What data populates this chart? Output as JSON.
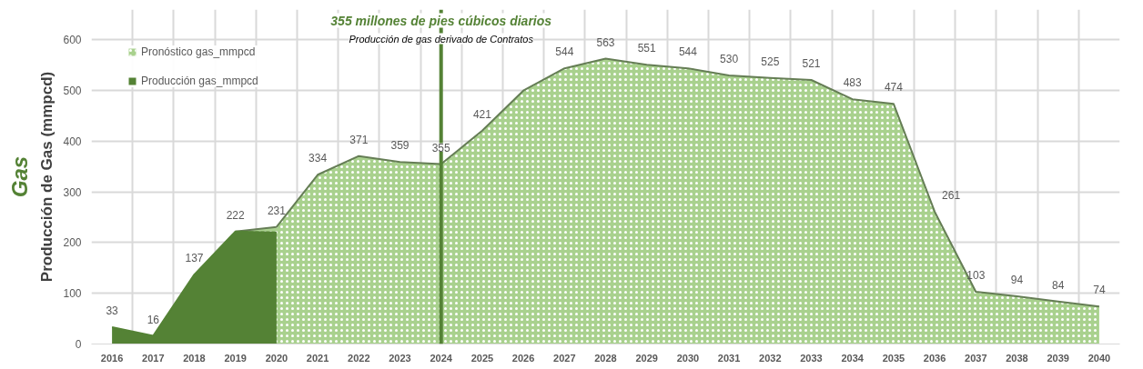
{
  "chart_data": {
    "type": "area",
    "title": "Gas",
    "ylabel": "Producción de Gas (mmpcd)",
    "categories": [
      "2016",
      "2017",
      "2018",
      "2019",
      "2020",
      "2021",
      "2022",
      "2023",
      "2024",
      "2025",
      "2026",
      "2027",
      "2028",
      "2029",
      "2030",
      "2031",
      "2032",
      "2033",
      "2034",
      "2035",
      "2036",
      "2037",
      "2038",
      "2039",
      "2040"
    ],
    "series": [
      {
        "name": "Pronóstico gas_mmpcd",
        "color": "#a9d18e",
        "values": [
          null,
          null,
          null,
          222,
          231,
          334,
          371,
          359,
          355,
          421,
          500,
          544,
          563,
          551,
          544,
          530,
          525,
          521,
          483,
          474,
          261,
          103,
          94,
          84,
          74
        ],
        "value_labels": [
          null,
          null,
          null,
          null,
          "231",
          "334",
          "371",
          "359",
          "355",
          "421",
          null,
          "544",
          "563",
          "551",
          "544",
          "530",
          "525",
          "521",
          "483",
          "474",
          "261",
          "103",
          "94",
          "84",
          "74"
        ]
      },
      {
        "name": "Producción gas_mmpcd",
        "color": "#548235",
        "values": [
          33,
          16,
          137,
          222,
          220,
          null,
          null,
          null,
          null,
          null,
          null,
          null,
          null,
          null,
          null,
          null,
          null,
          null,
          null,
          null,
          null,
          null,
          null,
          null,
          null
        ],
        "value_labels": [
          "33",
          "16",
          "137",
          "222",
          null,
          null,
          null,
          null,
          null,
          null,
          null,
          null,
          null,
          null,
          null,
          null,
          null,
          null,
          null,
          null,
          null,
          null,
          null,
          null,
          null
        ]
      }
    ],
    "ylim": [
      0,
      660
    ],
    "yticks": [
      0,
      100,
      200,
      300,
      400,
      500,
      600
    ],
    "ref_lines": [
      {
        "axis": "x",
        "value": "2024",
        "label": "355 millones de pies cúbicos diarios",
        "color": "#548235"
      }
    ],
    "annotations": [
      "Producción de gas derivado de Contratos"
    ],
    "grid": true,
    "legend": "top left"
  }
}
